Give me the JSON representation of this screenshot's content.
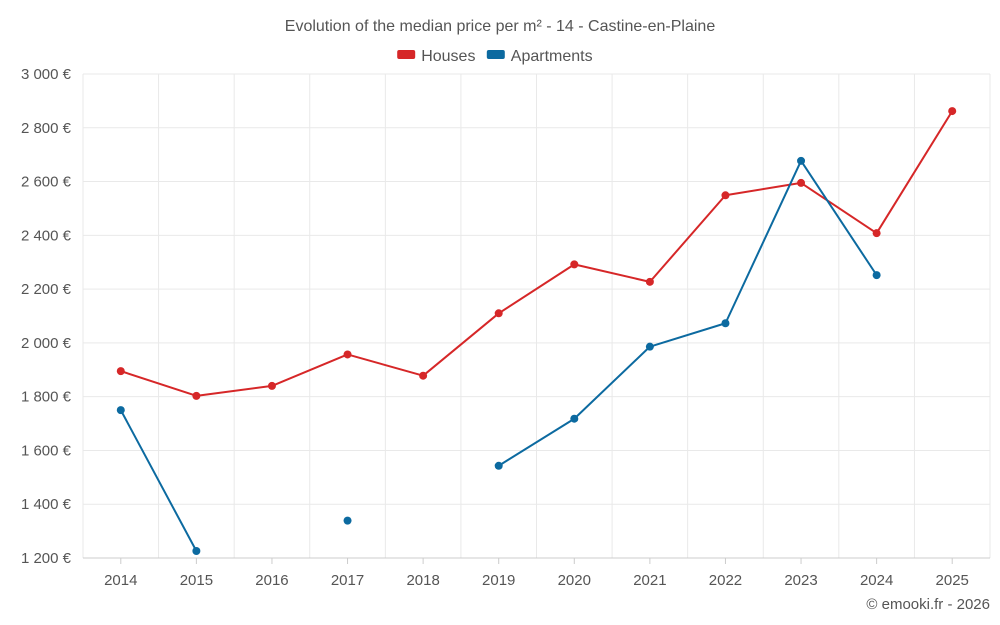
{
  "chart_data": {
    "type": "line",
    "title": "Evolution of the median price per m² - 14 - Castine-en-Plaine",
    "categories": [
      "2014",
      "2015",
      "2016",
      "2017",
      "2018",
      "2019",
      "2020",
      "2021",
      "2022",
      "2023",
      "2024",
      "2025"
    ],
    "ylim": [
      1200,
      3000
    ],
    "yticks": [
      1200,
      1400,
      1600,
      1800,
      2000,
      2200,
      2400,
      2600,
      2800,
      3000
    ],
    "ytick_labels": [
      "1 200 €",
      "1 400 €",
      "1 600 €",
      "1 800 €",
      "2 000 €",
      "2 200 €",
      "2 400 €",
      "2 600 €",
      "2 800 €",
      "3 000 €"
    ],
    "grid": true,
    "legend_position": "top-center",
    "series": [
      {
        "name": "Houses",
        "color": "#d62728",
        "values": [
          1895,
          1803,
          1840,
          1957,
          1878,
          2110,
          2292,
          2227,
          2549,
          2595,
          2408,
          2862
        ]
      },
      {
        "name": "Apartments",
        "color": "#0c6aa0",
        "values": [
          1750,
          1226,
          null,
          1339,
          null,
          1543,
          1718,
          1986,
          2073,
          2677,
          2252,
          null
        ]
      }
    ]
  },
  "credit": "© emooki.fr - 2026"
}
